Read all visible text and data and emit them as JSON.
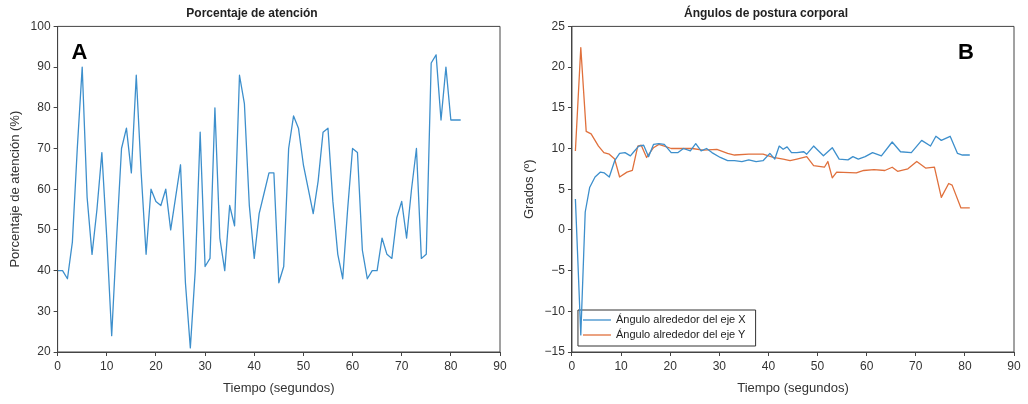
{
  "chart_data": [
    {
      "type": "line",
      "title": "Porcentaje de atención",
      "xlabel": "Tiempo (segundos)",
      "ylabel": "Porcentaje de atención (%)",
      "annotations": [
        "A"
      ],
      "x": [
        0,
        1,
        2,
        3,
        4,
        5,
        6,
        7,
        8,
        9,
        10,
        11,
        12,
        13,
        14,
        15,
        16,
        17,
        18,
        19,
        20,
        21,
        22,
        23,
        24,
        25,
        26,
        27,
        28,
        29,
        30,
        31,
        32,
        33,
        34,
        35,
        36,
        37,
        38,
        39,
        40,
        41,
        42,
        43,
        44,
        45,
        46,
        47,
        48,
        49,
        50,
        51,
        52,
        53,
        54,
        55,
        56,
        57,
        58,
        59,
        60,
        61,
        62,
        63,
        64,
        65,
        66,
        67,
        68,
        69,
        70,
        71,
        72,
        73,
        74,
        75,
        76,
        77,
        78,
        79,
        80,
        81,
        82
      ],
      "series": [
        {
          "color": "#3d8fcc",
          "values": [
            40,
            40,
            38,
            47,
            70,
            90,
            58,
            44,
            55,
            69,
            48,
            24,
            48,
            70,
            75,
            64,
            88,
            64,
            44,
            60,
            57,
            56,
            60,
            50,
            58,
            66,
            37,
            21,
            40,
            74,
            41,
            43,
            80,
            48,
            40,
            56,
            51,
            88,
            81,
            56,
            43,
            54,
            59,
            64,
            64,
            37,
            41,
            70,
            78,
            75,
            66,
            60,
            54,
            62,
            74,
            75,
            57,
            44,
            38,
            55,
            70,
            69,
            45,
            38,
            40,
            40,
            48,
            44,
            43,
            53,
            57,
            48,
            60,
            70,
            43,
            44,
            91,
            93,
            77,
            90,
            77,
            77,
            77
          ]
        }
      ],
      "xlim": [
        0,
        90
      ],
      "xticks": [
        0,
        10,
        20,
        30,
        40,
        50,
        60,
        70,
        80,
        90
      ],
      "ylim": [
        20,
        100
      ],
      "yticks": [
        20,
        30,
        40,
        50,
        60,
        70,
        80,
        90,
        100
      ],
      "grid": false,
      "legend": false
    },
    {
      "type": "line",
      "title": "Ángulos de postura corporal",
      "xlabel": "Tiempo (segundos)",
      "ylabel": "Grados (º)",
      "annotations": [
        "B"
      ],
      "series": [
        {
          "name": "Ángulo alrededor del eje X",
          "color": "#3d8fcc",
          "x": [
            0.7,
            1.8,
            2.7,
            3.6,
            4.7,
            5.8,
            6.6,
            7.6,
            8.7,
            9.7,
            10.8,
            11.9,
            12.6,
            13.6,
            14.6,
            15.6,
            16.6,
            17.7,
            18.8,
            20.2,
            21.6,
            22.7,
            24.1,
            25.2,
            26.3,
            27.4,
            28.5,
            30.2,
            31.7,
            33.1,
            34.6,
            36,
            37.5,
            38.9,
            40.3,
            41.3,
            42.2,
            43,
            43.8,
            44.7,
            45.8,
            47.2,
            47.8,
            49.2,
            51.2,
            53,
            54.4,
            56.2,
            57.2,
            58.3,
            59.7,
            61.2,
            63,
            65.2,
            66.9,
            69.1,
            71.2,
            73,
            74.1,
            75.2,
            77,
            78.5,
            79.5,
            81
          ],
          "values": [
            3.8,
            -12.9,
            2.2,
            5.2,
            6.5,
            7.1,
            7,
            6.5,
            8.5,
            9.4,
            9.5,
            9.1,
            9.6,
            10.3,
            10.4,
            9,
            10.5,
            10.6,
            10.5,
            9.5,
            9.5,
            10,
            9.7,
            10.6,
            9.7,
            10,
            9.5,
            8.9,
            8.5,
            8.5,
            8.4,
            8.6,
            8.4,
            8.5,
            9.4,
            8.7,
            10.3,
            9.9,
            10.2,
            9.5,
            9.5,
            9.6,
            9.3,
            10.3,
            9.1,
            10.1,
            8.7,
            8.6,
            9,
            8.7,
            9,
            9.5,
            9.1,
            10.8,
            9.6,
            9.5,
            11,
            10.3,
            11.5,
            11,
            11.5,
            9.4,
            9.2,
            9.2
          ]
        },
        {
          "name": "Ángulo alrededor del eje Y",
          "color": "#e0703c",
          "x": [
            0.7,
            1.8,
            2.9,
            3.9,
            5.4,
            6.5,
            7.6,
            8.7,
            9.7,
            11.2,
            12.3,
            13.4,
            14.1,
            15.2,
            16.6,
            17.7,
            18.8,
            20.2,
            23.1,
            24.5,
            26.7,
            29.5,
            31.7,
            33.1,
            36,
            38.9,
            41,
            43,
            44.4,
            45.8,
            47.8,
            49.2,
            51.4,
            52.1,
            53,
            53.9,
            57.9,
            59.4,
            61.5,
            63.7,
            65.2,
            66.3,
            68.4,
            70.2,
            72,
            73.8,
            75.2,
            76.7,
            77.4,
            79.2,
            81
          ],
          "values": [
            9.7,
            22.4,
            12.1,
            11.8,
            10.3,
            9.5,
            9.3,
            8.7,
            6.5,
            7.1,
            7.3,
            10.3,
            10.4,
            8.9,
            10.1,
            10.5,
            10.3,
            10,
            10,
            10,
            9.8,
            9.9,
            9.4,
            9.2,
            9.3,
            9.3,
            8.9,
            8.7,
            8.5,
            8.7,
            9,
            7.9,
            7.7,
            8.4,
            6.4,
            7.1,
            7,
            7.3,
            7.4,
            7.3,
            7.7,
            7.2,
            7.5,
            8.4,
            7.6,
            7.7,
            4,
            5.7,
            5.5,
            2.7,
            2.7
          ]
        }
      ],
      "xlim": [
        0,
        90
      ],
      "xticks": [
        0,
        10,
        20,
        30,
        40,
        50,
        60,
        70,
        80,
        90
      ],
      "ylim": [
        -15,
        25
      ],
      "yticks": [
        -15,
        -10,
        -5,
        0,
        5,
        10,
        15,
        20,
        25
      ],
      "grid": false,
      "legend": "bottom left"
    }
  ]
}
